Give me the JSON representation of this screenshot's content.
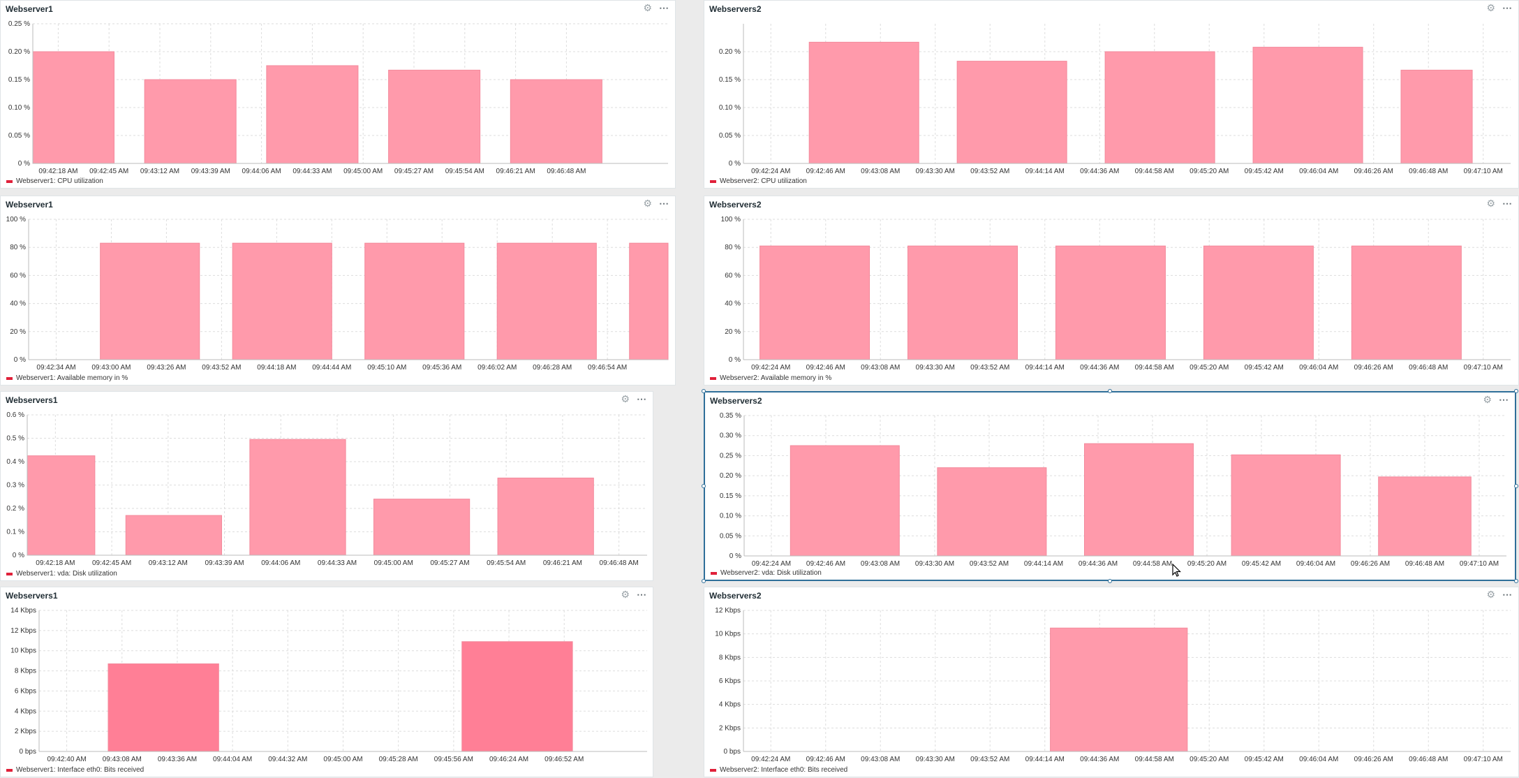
{
  "colors": {
    "bar": "#ff9aab",
    "bar_strong": "#ff7f96",
    "grid": "#dddddd",
    "axis": "#bbbbbb",
    "legend": "#e0213a",
    "selection": "#2f6f99"
  },
  "icons": {
    "settings": "gear-icon",
    "menu": "more-options-icon"
  },
  "widgets": [
    {
      "title": "Webserver1",
      "legend": "Webserver1: CPU utilization",
      "chart_data": {
        "type": "bar",
        "y_ticks": [
          "0 %",
          "0.05 %",
          "0.10 %",
          "0.15 %",
          "0.20 %",
          "0.25 %"
        ],
        "ylim": [
          0,
          0.25
        ],
        "x_ticks": [
          "09:42:18 AM",
          "09:42:45 AM",
          "09:43:12 AM",
          "09:43:39 AM",
          "09:44:06 AM",
          "09:44:33 AM",
          "09:45:00 AM",
          "09:45:27 AM",
          "09:45:54 AM",
          "09:46:21 AM",
          "09:46:48 AM"
        ],
        "x_range": [
          0,
          12.5
        ],
        "bars": [
          {
            "x0": 0,
            "x1": 1.6,
            "value": 0.2
          },
          {
            "x0": 2.2,
            "x1": 4.0,
            "value": 0.15
          },
          {
            "x0": 4.6,
            "x1": 6.4,
            "value": 0.175
          },
          {
            "x0": 7.0,
            "x1": 8.8,
            "value": 0.167
          },
          {
            "x0": 9.4,
            "x1": 11.2,
            "value": 0.15
          }
        ]
      }
    },
    {
      "title": "Webservers2",
      "legend": "Webserver2: CPU utilization",
      "chart_data": {
        "type": "bar",
        "y_ticks": [
          "0 %",
          "0.05 %",
          "0.10 %",
          "0.15 %",
          "0.20 %"
        ],
        "ylim": [
          0,
          0.25
        ],
        "x_ticks": [
          "09:42:24 AM",
          "09:42:46 AM",
          "09:43:08 AM",
          "09:43:30 AM",
          "09:43:52 AM",
          "09:44:14 AM",
          "09:44:36 AM",
          "09:44:58 AM",
          "09:45:20 AM",
          "09:45:42 AM",
          "09:46:04 AM",
          "09:46:26 AM",
          "09:46:48 AM",
          "09:47:10 AM"
        ],
        "x_range": [
          0,
          14.0
        ],
        "bars": [
          {
            "x0": 1.2,
            "x1": 3.2,
            "value": 0.217
          },
          {
            "x0": 3.9,
            "x1": 5.9,
            "value": 0.183
          },
          {
            "x0": 6.6,
            "x1": 8.6,
            "value": 0.2
          },
          {
            "x0": 9.3,
            "x1": 11.3,
            "value": 0.208
          },
          {
            "x0": 12.0,
            "x1": 13.3,
            "value": 0.167
          }
        ]
      }
    },
    {
      "title": "Webserver1",
      "legend": "Webserver1: Available memory in %",
      "chart_data": {
        "type": "bar",
        "y_ticks": [
          "0 %",
          "20 %",
          "40 %",
          "60 %",
          "80 %",
          "100 %"
        ],
        "ylim": [
          0,
          100
        ],
        "x_ticks": [
          "09:42:34 AM",
          "09:43:00 AM",
          "09:43:26 AM",
          "09:43:52 AM",
          "09:44:18 AM",
          "09:44:44 AM",
          "09:45:10 AM",
          "09:45:36 AM",
          "09:46:02 AM",
          "09:46:28 AM",
          "09:46:54 AM"
        ],
        "x_range": [
          0,
          11.6
        ],
        "bars": [
          {
            "x0": 1.3,
            "x1": 3.1,
            "value": 83
          },
          {
            "x0": 3.7,
            "x1": 5.5,
            "value": 83
          },
          {
            "x0": 6.1,
            "x1": 7.9,
            "value": 83
          },
          {
            "x0": 8.5,
            "x1": 10.3,
            "value": 83
          },
          {
            "x0": 10.9,
            "x1": 11.9,
            "value": 83
          }
        ]
      }
    },
    {
      "title": "Webservers2",
      "legend": "Webserver2: Available memory in %",
      "chart_data": {
        "type": "bar",
        "y_ticks": [
          "0 %",
          "20 %",
          "40 %",
          "60 %",
          "80 %",
          "100 %"
        ],
        "ylim": [
          0,
          100
        ],
        "x_ticks": [
          "09:42:24 AM",
          "09:42:46 AM",
          "09:43:08 AM",
          "09:43:30 AM",
          "09:43:52 AM",
          "09:44:14 AM",
          "09:44:36 AM",
          "09:44:58 AM",
          "09:45:20 AM",
          "09:45:42 AM",
          "09:46:04 AM",
          "09:46:26 AM",
          "09:46:48 AM",
          "09:47:10 AM"
        ],
        "x_range": [
          0,
          14.0
        ],
        "bars": [
          {
            "x0": 0.3,
            "x1": 2.3,
            "value": 81
          },
          {
            "x0": 3.0,
            "x1": 5.0,
            "value": 81
          },
          {
            "x0": 5.7,
            "x1": 7.7,
            "value": 81
          },
          {
            "x0": 8.4,
            "x1": 10.4,
            "value": 81
          },
          {
            "x0": 11.1,
            "x1": 13.1,
            "value": 81
          }
        ]
      }
    },
    {
      "title": "Webservers1",
      "legend": "Webserver1: vda: Disk utilization",
      "chart_data": {
        "type": "bar",
        "y_ticks": [
          "0 %",
          "0.1 %",
          "0.2 %",
          "0.3 %",
          "0.4 %",
          "0.5 %",
          "0.6 %"
        ],
        "ylim": [
          0,
          0.6
        ],
        "x_ticks": [
          "09:42:18 AM",
          "09:42:45 AM",
          "09:43:12 AM",
          "09:43:39 AM",
          "09:44:06 AM",
          "09:44:33 AM",
          "09:45:00 AM",
          "09:45:27 AM",
          "09:45:54 AM",
          "09:46:21 AM",
          "09:46:48 AM"
        ],
        "x_range": [
          0,
          11.0
        ],
        "bars": [
          {
            "x0": 0,
            "x1": 1.2,
            "value": 0.425
          },
          {
            "x0": 1.75,
            "x1": 3.45,
            "value": 0.17
          },
          {
            "x0": 3.95,
            "x1": 5.65,
            "value": 0.495
          },
          {
            "x0": 6.15,
            "x1": 7.85,
            "value": 0.24
          },
          {
            "x0": 8.35,
            "x1": 10.05,
            "value": 0.33
          }
        ]
      }
    },
    {
      "title": "Webservers2",
      "legend": "Webserver2: vda: Disk utilization",
      "selected": true,
      "chart_data": {
        "type": "bar",
        "y_ticks": [
          "0 %",
          "0.05 %",
          "0.10 %",
          "0.15 %",
          "0.20 %",
          "0.25 %",
          "0.30 %",
          "0.35 %"
        ],
        "ylim": [
          0,
          0.35
        ],
        "x_ticks": [
          "09:42:24 AM",
          "09:42:46 AM",
          "09:43:08 AM",
          "09:43:30 AM",
          "09:43:52 AM",
          "09:44:14 AM",
          "09:44:36 AM",
          "09:44:58 AM",
          "09:45:20 AM",
          "09:45:42 AM",
          "09:46:04 AM",
          "09:46:26 AM",
          "09:46:48 AM",
          "09:47:10 AM"
        ],
        "x_range": [
          0,
          14.0
        ],
        "bars": [
          {
            "x0": 0.85,
            "x1": 2.85,
            "value": 0.275
          },
          {
            "x0": 3.55,
            "x1": 5.55,
            "value": 0.22
          },
          {
            "x0": 6.25,
            "x1": 8.25,
            "value": 0.28
          },
          {
            "x0": 8.95,
            "x1": 10.95,
            "value": 0.252
          },
          {
            "x0": 11.65,
            "x1": 13.35,
            "value": 0.197
          }
        ]
      }
    },
    {
      "title": "Webservers1",
      "legend": "Webserver1: Interface eth0: Bits received",
      "chart_data": {
        "type": "bar",
        "strong": true,
        "y_ticks": [
          "0 bps",
          "2 Kbps",
          "4 Kbps",
          "6 Kbps",
          "8 Kbps",
          "10 Kbps",
          "12 Kbps",
          "14 Kbps"
        ],
        "ylim": [
          0,
          14
        ],
        "x_ticks": [
          "09:42:40 AM",
          "09:43:08 AM",
          "09:43:36 AM",
          "09:44:04 AM",
          "09:44:32 AM",
          "09:45:00 AM",
          "09:45:28 AM",
          "09:45:56 AM",
          "09:46:24 AM",
          "09:46:52 AM"
        ],
        "x_range": [
          0,
          11.0
        ],
        "bars": [
          {
            "x0": 1.25,
            "x1": 3.25,
            "value": 8.7
          },
          {
            "x0": 7.65,
            "x1": 9.65,
            "value": 10.9
          }
        ]
      }
    },
    {
      "title": "Webservers2",
      "legend": "Webserver2: Interface eth0: Bits received",
      "chart_data": {
        "type": "bar",
        "y_ticks": [
          "0 bps",
          "2 Kbps",
          "4 Kbps",
          "6 Kbps",
          "8 Kbps",
          "10 Kbps",
          "12 Kbps"
        ],
        "ylim": [
          0,
          12
        ],
        "x_ticks": [
          "09:42:24 AM",
          "09:42:46 AM",
          "09:43:08 AM",
          "09:43:30 AM",
          "09:43:52 AM",
          "09:44:14 AM",
          "09:44:36 AM",
          "09:44:58 AM",
          "09:45:20 AM",
          "09:45:42 AM",
          "09:46:04 AM",
          "09:46:26 AM",
          "09:46:48 AM",
          "09:47:10 AM"
        ],
        "x_range": [
          0,
          14.0
        ],
        "bars": [
          {
            "x0": 5.6,
            "x1": 8.1,
            "value": 10.5
          }
        ]
      }
    }
  ]
}
